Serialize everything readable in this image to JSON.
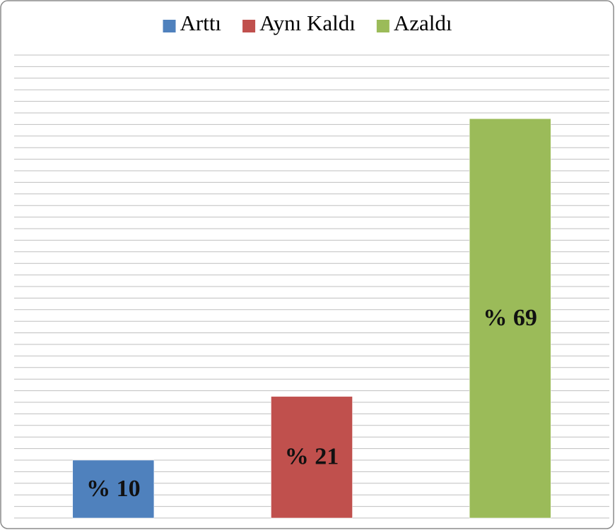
{
  "chart_data": {
    "type": "bar",
    "series": [
      {
        "name": "Arttı",
        "color": "#4f81bd",
        "values": [
          10
        ],
        "value_labels": [
          "% 10"
        ]
      },
      {
        "name": "Aynı Kaldı",
        "color": "#c0504d",
        "values": [
          21
        ],
        "value_labels": [
          "% 21"
        ]
      },
      {
        "name": "Azaldı",
        "color": "#9bbb59",
        "values": [
          69
        ],
        "value_labels": [
          "% 69"
        ]
      }
    ],
    "ylim": [
      0,
      80
    ],
    "yticks": [
      0,
      2,
      4,
      6,
      8,
      10,
      12,
      14,
      16,
      18,
      20,
      22,
      24,
      26,
      28,
      30,
      32,
      34,
      36,
      38,
      40,
      42,
      44,
      46,
      48,
      50,
      52,
      54,
      56,
      58,
      60,
      62,
      64,
      66,
      68,
      70,
      72,
      74,
      76,
      78,
      80
    ],
    "grid": true,
    "legend": "top"
  }
}
